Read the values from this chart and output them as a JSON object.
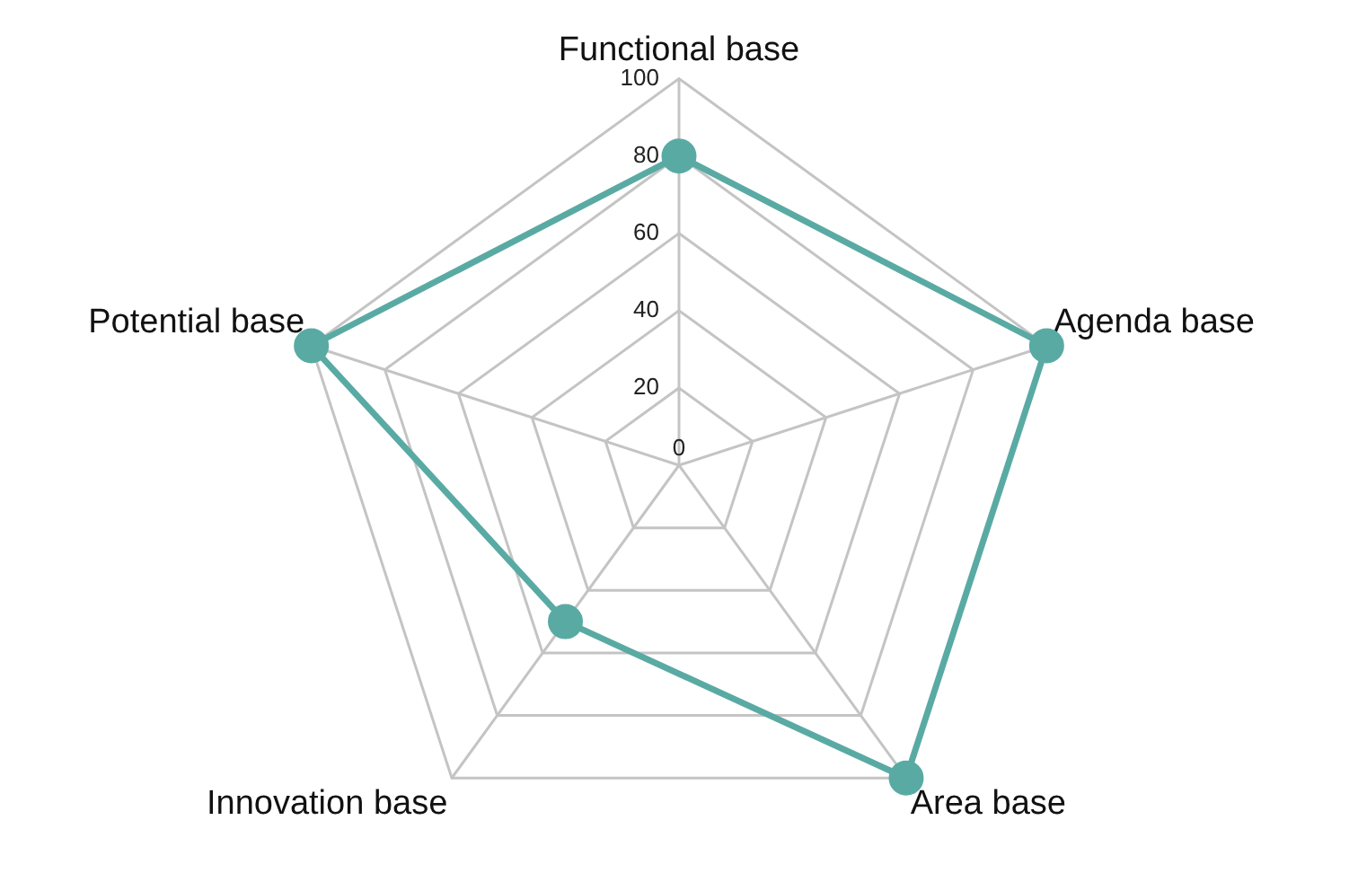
{
  "chart_data": {
    "type": "radar",
    "categories": [
      "Functional base",
      "Agenda base",
      "Area base",
      "Innovation base",
      "Potential base"
    ],
    "series": [
      {
        "color": "#5aaaa4",
        "values": [
          80,
          100,
          100,
          50,
          100
        ]
      }
    ],
    "ylim": [
      0,
      100
    ],
    "yticks": [
      0,
      20,
      40,
      60,
      80,
      100
    ],
    "grid": true,
    "legend": false,
    "marker": "circle",
    "line_style": "solid"
  }
}
